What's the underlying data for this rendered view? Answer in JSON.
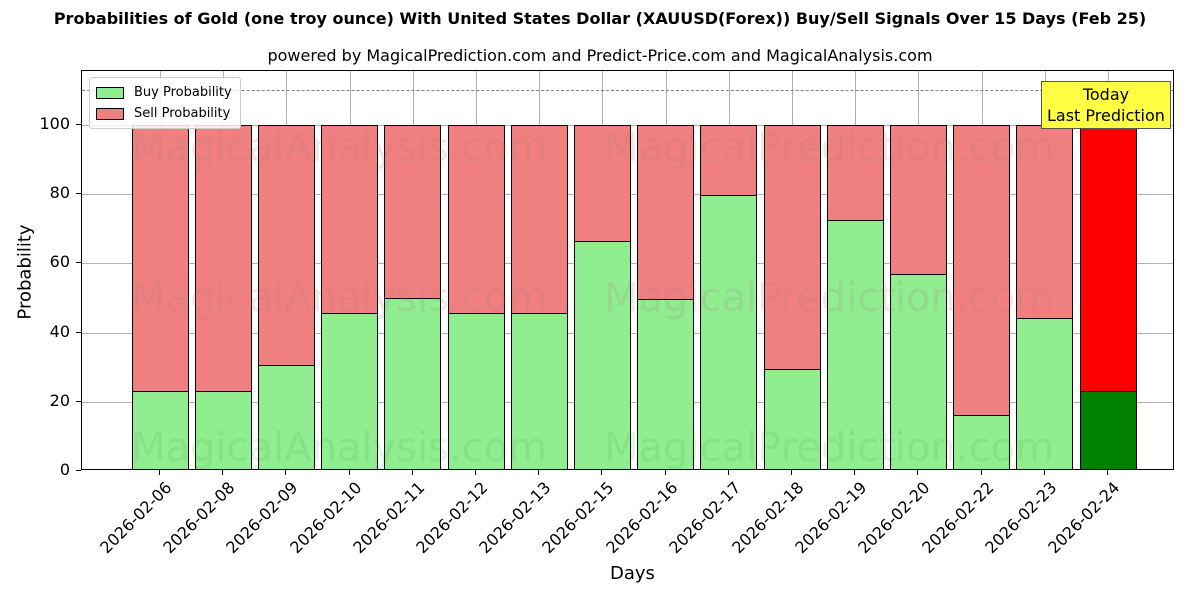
{
  "header": {
    "title": "Probabilities of Gold (one troy ounce) With United States Dollar (XAUUSD(Forex)) Buy/Sell Signals Over 15 Days (Feb 25)",
    "subtitle": "powered by MagicalPrediction.com and Predict-Price.com and MagicalAnalysis.com"
  },
  "legend": {
    "buy_label": "Buy Probability",
    "sell_label": "Sell Probability"
  },
  "annotation": {
    "line1": "Today",
    "line2": "Last Prediction"
  },
  "watermarks": [
    "MagicalAnalysis.com",
    "MagicalPrediction.com"
  ],
  "axes": {
    "xlabel": "Days",
    "ylabel": "Probability",
    "yticks": [
      "0",
      "20",
      "40",
      "60",
      "80",
      "100"
    ]
  },
  "colors": {
    "buy": "#90ee90",
    "sell": "#f08080",
    "buy_today": "#008000",
    "sell_today": "#ff0000",
    "annotation_bg": "#ffff44"
  },
  "chart_data": {
    "type": "bar",
    "stacked": true,
    "title": "Probabilities of Gold (one troy ounce) With United States Dollar (XAUUSD(Forex)) Buy/Sell Signals Over 15 Days (Feb 25)",
    "subtitle": "powered by MagicalPrediction.com and Predict-Price.com and MagicalAnalysis.com",
    "xlabel": "Days",
    "ylabel": "Probability",
    "ylim": [
      0,
      115
    ],
    "yticks": [
      0,
      20,
      40,
      60,
      80,
      100
    ],
    "grid": true,
    "legend_position": "upper left",
    "reference_line": {
      "y": 110,
      "style": "dashed",
      "color": "#808080"
    },
    "categories": [
      "2026-02-06",
      "2026-02-08",
      "2026-02-09",
      "2026-02-10",
      "2026-02-11",
      "2026-02-12",
      "2026-02-13",
      "2026-02-15",
      "2026-02-16",
      "2026-02-17",
      "2026-02-18",
      "2026-02-19",
      "2026-02-20",
      "2026-02-22",
      "2026-02-23",
      "2026-02-24"
    ],
    "series": [
      {
        "name": "Buy Probability",
        "values": [
          23.1,
          23.1,
          30.5,
          45.8,
          50.0,
          45.8,
          45.8,
          66.6,
          49.6,
          79.9,
          29.6,
          72.4,
          56.8,
          16.3,
          44.1,
          23.0
        ]
      },
      {
        "name": "Sell Probability",
        "values": [
          76.9,
          76.9,
          69.5,
          54.2,
          50.0,
          54.2,
          54.2,
          33.4,
          50.4,
          20.1,
          70.4,
          27.6,
          43.2,
          83.7,
          55.9,
          77.0
        ]
      }
    ],
    "annotations": [
      {
        "text": "Today\nLast Prediction",
        "x": "2026-02-24"
      }
    ]
  }
}
